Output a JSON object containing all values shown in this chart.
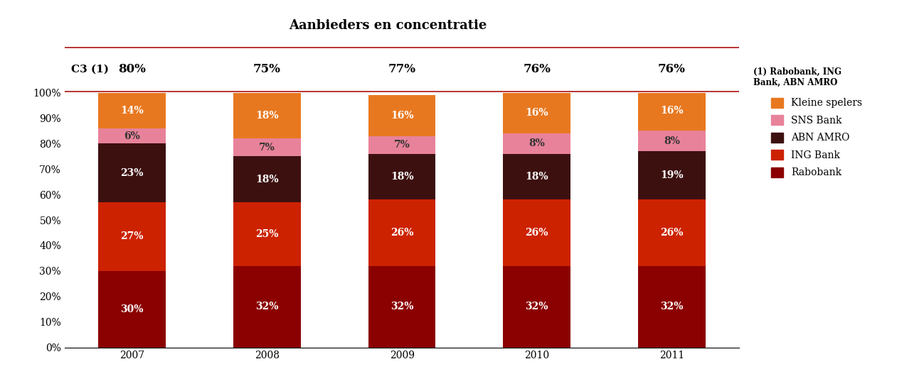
{
  "title": "Aanbieders en concentratie",
  "years": [
    "2007",
    "2008",
    "2009",
    "2010",
    "2011"
  ],
  "c3_label": "C3 (1)",
  "c3_values": [
    "80%",
    "75%",
    "77%",
    "76%",
    "76%"
  ],
  "c3_note": "(1) Rabobank, ING\nBank, ABN AMRO",
  "series": [
    {
      "name": "Rabobank",
      "color": "#8B0000",
      "values": [
        30,
        32,
        32,
        32,
        32
      ],
      "text_color": "#FFFFFF"
    },
    {
      "name": "ING Bank",
      "color": "#CC2200",
      "values": [
        27,
        25,
        26,
        26,
        26
      ],
      "text_color": "#FFFFFF"
    },
    {
      "name": "ABN AMRO",
      "color": "#3D1010",
      "values": [
        23,
        18,
        18,
        18,
        19
      ],
      "text_color": "#FFFFFF"
    },
    {
      "name": "SNS Bank",
      "color": "#E8829A",
      "values": [
        6,
        7,
        7,
        8,
        8
      ],
      "text_color": "#333333"
    },
    {
      "name": "Kleine spelers",
      "color": "#E87820",
      "values": [
        14,
        18,
        16,
        16,
        16
      ],
      "text_color": "#FFFFFF"
    }
  ],
  "ylim": [
    0,
    100
  ],
  "yticks": [
    0,
    10,
    20,
    30,
    40,
    50,
    60,
    70,
    80,
    90,
    100
  ],
  "ytick_labels": [
    "0%",
    "10%",
    "20%",
    "30%",
    "40%",
    "50%",
    "60%",
    "70%",
    "80%",
    "90%",
    "100%"
  ],
  "bar_width": 0.5,
  "background_color": "#FFFFFF",
  "title_fontsize": 13,
  "legend_fontsize": 10,
  "tick_fontsize": 10,
  "c3_fontsize": 11,
  "c3_value_fontsize": 12,
  "label_fontsize": 10,
  "red_line_color": "#AA1111"
}
